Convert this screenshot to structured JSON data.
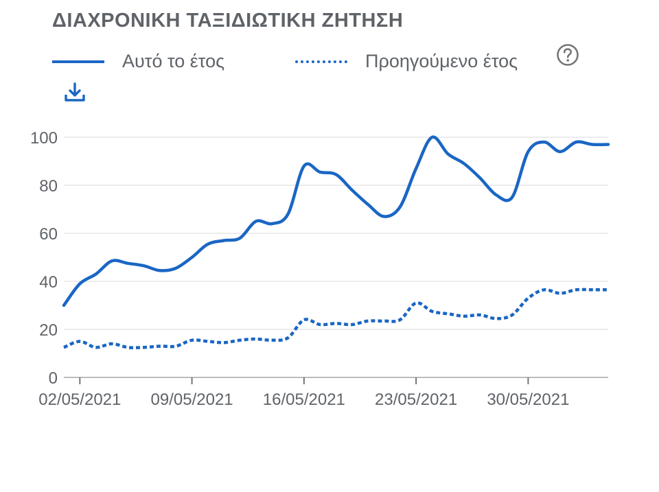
{
  "header": {
    "title": "ΔΙΑΧΡΟΝΙΚΗ ΤΑΞΙΔΙΩΤΙΚΗ ΖΗΤΗΣΗ"
  },
  "legend": {
    "this_year": "Αυτό το έτος",
    "previous_year": "Προηγούμενο έτος"
  },
  "icons": {
    "help": "help-circle-icon",
    "download": "download-icon"
  },
  "colors": {
    "series": "#1a66c4",
    "text": "#5f6368",
    "grid": "#e6e6e6"
  },
  "chart_data": {
    "type": "line",
    "title": "ΔΙΑΧΡΟΝΙΚΗ ΤΑΞΙΔΙΩΤΙΚΗ ΖΗΤΗΣΗ",
    "xlabel": "",
    "ylabel": "",
    "ylim": [
      0,
      100
    ],
    "yticks": [
      0,
      20,
      40,
      60,
      80,
      100
    ],
    "grid": true,
    "legend_position": "top",
    "x_start": "01/05/2021",
    "x_end": "04/06/2021",
    "x_ticks": [
      {
        "date": "02/05/2021",
        "day": 2
      },
      {
        "date": "09/05/2021",
        "day": 9
      },
      {
        "date": "16/05/2021",
        "day": 16
      },
      {
        "date": "23/05/2021",
        "day": 23
      },
      {
        "date": "30/05/2021",
        "day": 30
      }
    ],
    "x": [
      "01/05/2021",
      "02/05/2021",
      "03/05/2021",
      "04/05/2021",
      "05/05/2021",
      "06/05/2021",
      "07/05/2021",
      "08/05/2021",
      "09/05/2021",
      "10/05/2021",
      "11/05/2021",
      "12/05/2021",
      "13/05/2021",
      "14/05/2021",
      "15/05/2021",
      "16/05/2021",
      "17/05/2021",
      "18/05/2021",
      "19/05/2021",
      "20/05/2021",
      "21/05/2021",
      "22/05/2021",
      "23/05/2021",
      "24/05/2021",
      "25/05/2021",
      "26/05/2021",
      "27/05/2021",
      "28/05/2021",
      "29/05/2021",
      "30/05/2021",
      "31/05/2021",
      "01/06/2021",
      "02/06/2021",
      "03/06/2021",
      "04/06/2021"
    ],
    "series": [
      {
        "name": "Αυτό το έτος",
        "style": "solid",
        "values": [
          30,
          39,
          43,
          48.5,
          47.5,
          46.5,
          44.5,
          45.5,
          50,
          55.5,
          57,
          58,
          65,
          64,
          68,
          88,
          85.5,
          84.5,
          78,
          72,
          67,
          71,
          87,
          100,
          93,
          89,
          83,
          76,
          75,
          94,
          98,
          94,
          98,
          97,
          97
        ]
      },
      {
        "name": "Προηγούμενο έτος",
        "style": "dotted",
        "values": [
          12.5,
          15,
          12.5,
          14,
          12.5,
          12.5,
          13,
          13,
          15.5,
          15,
          14.5,
          15.5,
          16,
          15.5,
          16.5,
          24,
          22,
          22.5,
          22,
          23.5,
          23.5,
          24,
          31,
          27.5,
          26.5,
          25.5,
          26,
          24.5,
          26,
          33,
          36.5,
          35,
          36.5,
          36.5,
          36.5
        ]
      }
    ]
  }
}
